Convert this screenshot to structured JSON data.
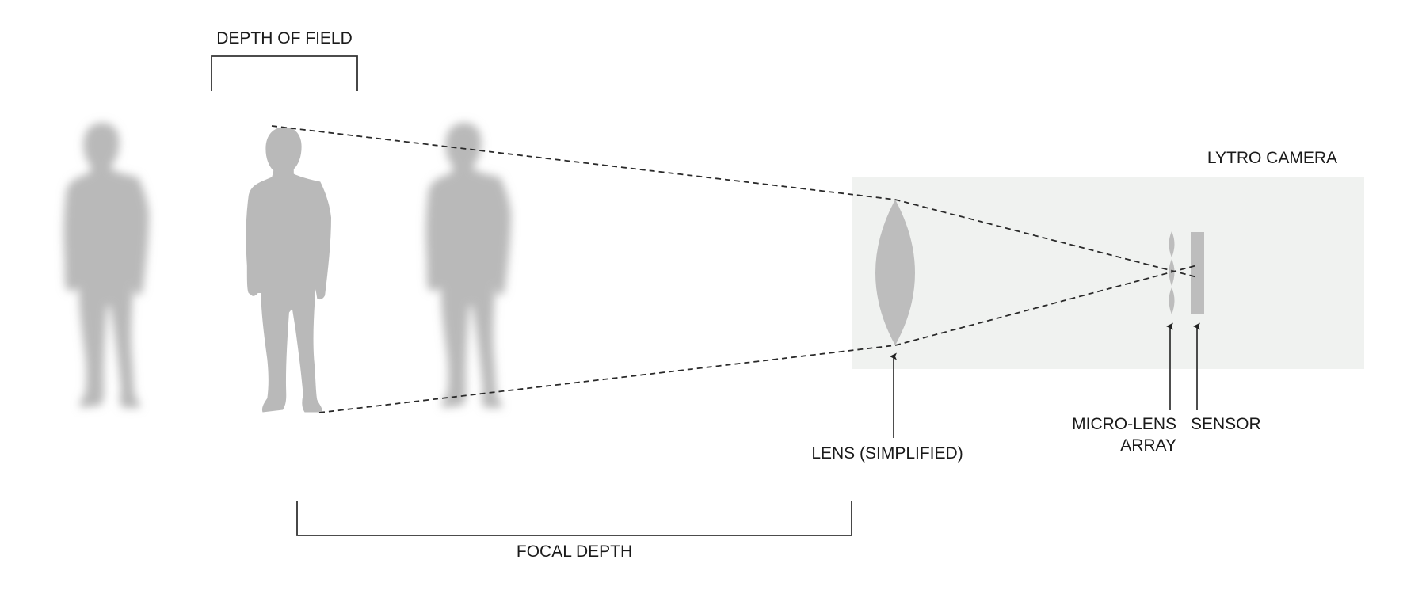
{
  "labels": {
    "depth_of_field": "DEPTH OF FIELD",
    "lytro_camera": "LYTRO CAMERA",
    "lens": "LENS (SIMPLIFIED)",
    "micro_lens_line1": "MICRO-LENS",
    "micro_lens_line2": "ARRAY",
    "sensor": "SENSOR",
    "focal_depth": "FOCAL DEPTH"
  },
  "colors": {
    "camera_box": "#f0f2f0",
    "figure": "#b9b9b9",
    "lens": "#bdbdbd",
    "sensor": "#bdbdbd",
    "lines": "#2a2a2a"
  },
  "figures": [
    {
      "name": "blurred-person-left",
      "state": "out of focus"
    },
    {
      "name": "focused-person",
      "state": "in focus"
    },
    {
      "name": "blurred-person-right",
      "state": "out of focus"
    }
  ]
}
